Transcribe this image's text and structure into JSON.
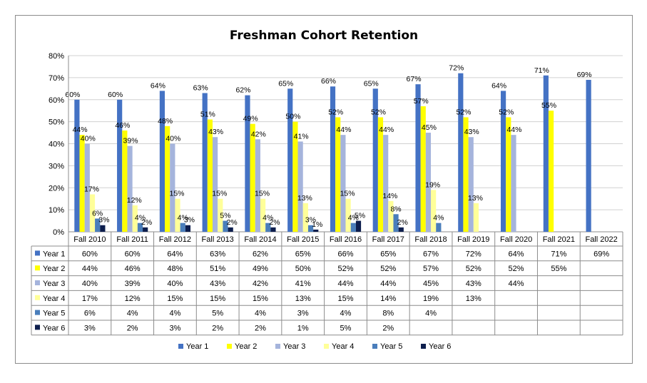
{
  "chart_data": {
    "type": "bar",
    "title": "Freshman Cohort Retention",
    "xlabel": "",
    "ylabel": "",
    "ylim": [
      0,
      80
    ],
    "y_ticks": [
      "0%",
      "10%",
      "20%",
      "30%",
      "40%",
      "50%",
      "60%",
      "70%",
      "80%"
    ],
    "grid": true,
    "legend": "bottom",
    "categories": [
      "Fall 2010",
      "Fall 2011",
      "Fall 2012",
      "Fall 2013",
      "Fall 2014",
      "Fall 2015",
      "Fall 2016",
      "Fall 2017",
      "Fall 2018",
      "Fall 2019",
      "Fall 2020",
      "Fall 2021",
      "Fall 2022"
    ],
    "series": [
      {
        "name": "Year 1",
        "color": "#4472C4",
        "values": [
          60,
          60,
          64,
          63,
          62,
          65,
          66,
          65,
          67,
          72,
          64,
          71,
          69
        ]
      },
      {
        "name": "Year 2",
        "color": "#FFFF00",
        "values": [
          44,
          46,
          48,
          51,
          49,
          50,
          52,
          52,
          57,
          52,
          52,
          55,
          null
        ]
      },
      {
        "name": "Year 3",
        "color": "#A5B4DC",
        "values": [
          40,
          39,
          40,
          43,
          42,
          41,
          44,
          44,
          45,
          43,
          44,
          null,
          null
        ]
      },
      {
        "name": "Year 4",
        "color": "#FFFF99",
        "values": [
          17,
          12,
          15,
          15,
          15,
          13,
          15,
          14,
          19,
          13,
          null,
          null,
          null
        ]
      },
      {
        "name": "Year 5",
        "color": "#4A7EBB",
        "values": [
          6,
          4,
          4,
          5,
          4,
          3,
          4,
          8,
          4,
          null,
          null,
          null,
          null
        ]
      },
      {
        "name": "Year 6",
        "color": "#0D1E4D",
        "values": [
          3,
          2,
          3,
          2,
          2,
          1,
          5,
          2,
          null,
          null,
          null,
          null,
          null
        ]
      }
    ],
    "data_table": true
  }
}
